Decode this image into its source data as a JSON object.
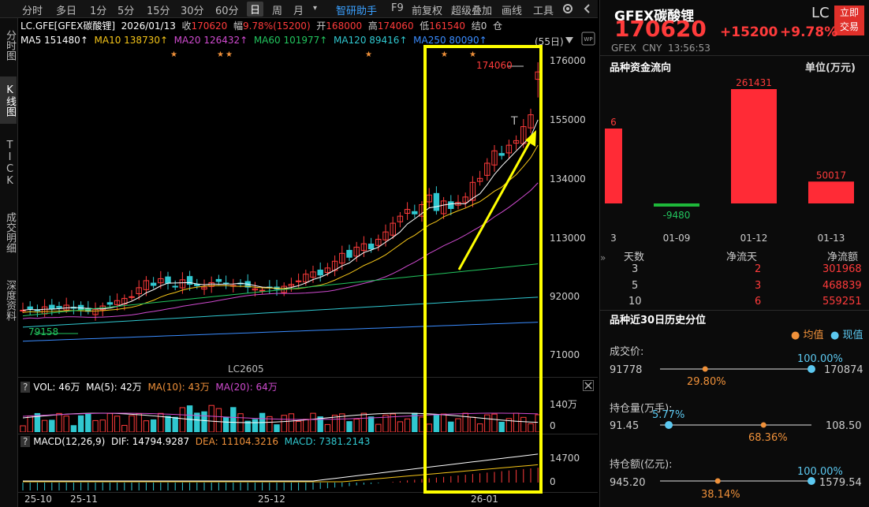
{
  "toolbar": {
    "items": [
      "分时",
      "多日",
      "1分",
      "5分",
      "15分",
      "30分",
      "60分",
      "日",
      "周",
      "月",
      "▾",
      "智研助手",
      "F9",
      "前复权",
      "超级叠加",
      "画线",
      "工具"
    ],
    "active_index": 7
  },
  "left_nav": [
    "分时图",
    "K线图",
    "TICK",
    "成交明细",
    "深度资料"
  ],
  "info_bar": {
    "code": "LC.GFE[GFEX碳酸锂]",
    "date": "2026/01/13",
    "close_label": "收",
    "close_value": "170620",
    "range_label": "幅",
    "range_value": "9.78%(15200)",
    "open_label": "开",
    "open_value": "168000",
    "high_label": "高",
    "high_value": "174060",
    "low_label": "低",
    "low_value": "161540",
    "settle_label": "结",
    "settle_value": "0",
    "hold_label": "仓"
  },
  "ma_bar": {
    "ma5": "MA5 151480↑",
    "ma10": "MA10 138730↑",
    "ma20": "MA20 126432↑",
    "ma60": "MA60 101977↑",
    "ma120": "MA120 89416↑",
    "ma250": "MA250 80090↑",
    "period": "(55日)"
  },
  "main_axis": [
    "176000",
    "155000",
    "134000",
    "113000",
    "92000",
    "71000"
  ],
  "main_labels": {
    "high_mark": "174060",
    "low_mark": "79158",
    "contract": "LC2605",
    "t_mark": "T"
  },
  "vol_bar": {
    "q": "?",
    "vol": "VOL: 46万",
    "ma5": "MA(5): 42万",
    "ma10": "MA(10): 43万",
    "ma20": "MA(20): 64万",
    "axis_top": "140万",
    "axis_zero": "0"
  },
  "macd_bar": {
    "q": "?",
    "title": "MACD(12,26,9)",
    "dif": "DIF: 14794.9287",
    "dea": "DEA: 11104.3216",
    "macd": "MACD: 7381.2143",
    "axis_top": "14700",
    "axis_zero": "0"
  },
  "date_axis": [
    "25-10",
    "25-11",
    "25-12",
    "26-01"
  ],
  "right_panel": {
    "title": "GFEX碳酸锂",
    "code": "LC",
    "trade_button": [
      "立即",
      "交易"
    ],
    "price": "170620",
    "change": "+15200",
    "change_pct": "+9.78%",
    "meta": "GFEX  CNY  13:56:53",
    "flow_title": "品种资金流向",
    "flow_unit": "单位(万元)",
    "flow_bars": [
      {
        "label": "6",
        "date": "3",
        "value": 6
      },
      {
        "label": "-9480",
        "date": "01-09",
        "value": -9480
      },
      {
        "label": "261431",
        "date": "01-12",
        "value": 261431
      },
      {
        "label": "50017",
        "date": "01-13",
        "value": 50017
      }
    ],
    "flow_table_headers": [
      "天数",
      "净流天",
      "净流额"
    ],
    "flow_table_rows": [
      [
        "3",
        "2",
        "301968"
      ],
      [
        "5",
        "3",
        "468839"
      ],
      [
        "10",
        "6",
        "559251"
      ]
    ],
    "hist_title": "品种近30日历史分位",
    "legend_avg": "均值",
    "legend_cur": "现值",
    "hist_items": [
      {
        "label": "成交价:",
        "min": "91778",
        "max": "170874",
        "avg_pct": "29.80%",
        "cur_pct": "100.00%",
        "avg": 0.298,
        "cur": 1.0
      },
      {
        "label": "持仓量(万手):",
        "min": "91.45",
        "max": "108.50",
        "avg_pct": "68.36%",
        "cur_pct": "5.77%",
        "avg": 0.6836,
        "cur": 0.0577
      },
      {
        "label": "持仓额(亿元):",
        "min": "945.20",
        "max": "1579.54",
        "avg_pct": "38.14%",
        "cur_pct": "100.00%",
        "avg": 0.3814,
        "cur": 1.0
      }
    ]
  },
  "colors": {
    "up": "#ff3b3b",
    "down": "#30c8d0",
    "highlight": "#ffff00",
    "bg": "#000000"
  }
}
